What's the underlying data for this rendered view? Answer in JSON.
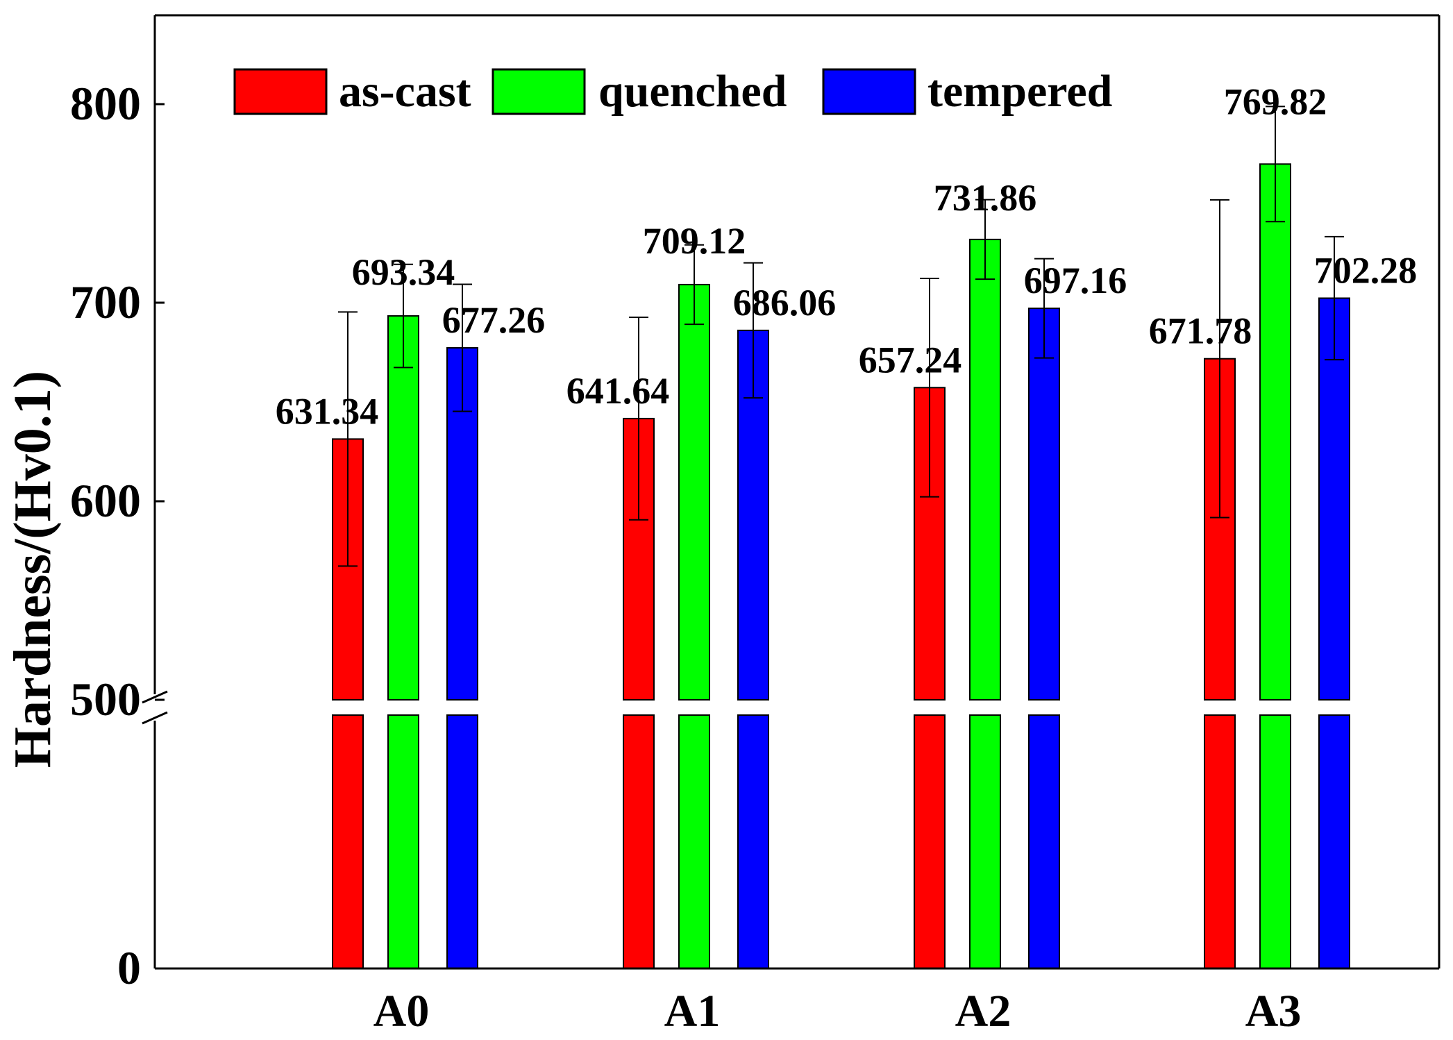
{
  "chart_data": {
    "type": "bar",
    "title": "",
    "xlabel": "",
    "ylabel": "Hardness/(Hv0.1)",
    "categories": [
      "A0",
      "A1",
      "A2",
      "A3"
    ],
    "series": [
      {
        "name": "as-cast",
        "color": "#ff0000",
        "values": [
          631.34,
          641.64,
          657.24,
          671.78
        ],
        "errors": [
          64,
          51,
          55,
          80
        ]
      },
      {
        "name": "quenched",
        "color": "#00ff00",
        "values": [
          693.34,
          709.12,
          731.86,
          769.82
        ],
        "errors": [
          26,
          20,
          20,
          29
        ]
      },
      {
        "name": "tempered",
        "color": "#0000ff",
        "values": [
          677.26,
          686.06,
          697.16,
          702.28
        ],
        "errors": [
          32,
          34,
          25,
          31
        ]
      }
    ],
    "value_labels": [
      [
        "631.34",
        "641.64",
        "657.24",
        "671.78"
      ],
      [
        "693.34",
        "709.12",
        "731.86",
        "769.82"
      ],
      [
        "677.26",
        "686.06",
        "697.16",
        "702.28"
      ]
    ],
    "y_ticks": [
      {
        "value": 0,
        "label": "0"
      },
      {
        "value": 500,
        "label": "500"
      },
      {
        "value": 600,
        "label": "600"
      },
      {
        "value": 700,
        "label": "700"
      },
      {
        "value": 800,
        "label": "800"
      }
    ],
    "axis_break": true,
    "ylim": [
      0,
      850
    ],
    "legend_position": "top",
    "grid": false
  }
}
